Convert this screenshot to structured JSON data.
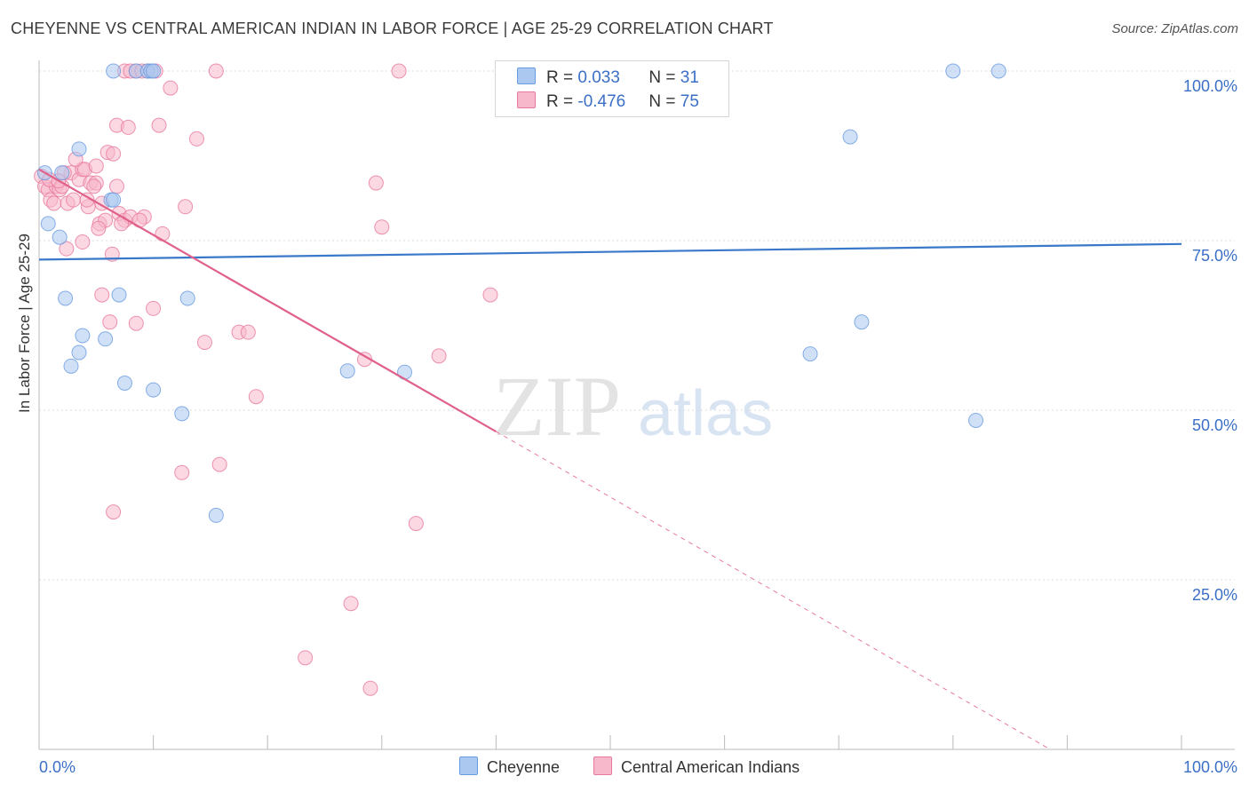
{
  "header": {
    "title": "CHEYENNE VS CENTRAL AMERICAN INDIAN IN LABOR FORCE | AGE 25-29 CORRELATION CHART",
    "source": "Source: ZipAtlas.com"
  },
  "watermark": {
    "zip": "ZIP",
    "atlas": "atlas"
  },
  "legend": {
    "rows": [
      {
        "r_label": "R = ",
        "r_value": "0.033",
        "n_label": "N = ",
        "n_value": "31",
        "color": "#aac8f0"
      },
      {
        "r_label": "R = ",
        "r_value": "-0.476",
        "n_label": "N = ",
        "n_value": "75",
        "color": "#f7b8cb"
      }
    ]
  },
  "bottom_legend": [
    {
      "label": "Cheyenne",
      "color": "#aac8f0"
    },
    {
      "label": "Central American Indians",
      "color": "#f7b8cb"
    }
  ],
  "chart_data": {
    "type": "scatter",
    "title": "CHEYENNE VS CENTRAL AMERICAN INDIAN IN LABOR FORCE | AGE 25-29 CORRELATION CHART",
    "xlabel": "",
    "ylabel": "In Labor Force | Age 25-29",
    "xlim": [
      0,
      100
    ],
    "ylim": [
      0,
      100
    ],
    "x_tick_labels": [
      "0.0%",
      "100.0%"
    ],
    "y_tick_labels": [
      "25.0%",
      "50.0%",
      "75.0%",
      "100.0%"
    ],
    "y_ticks": [
      25,
      50,
      75,
      100
    ],
    "series": [
      {
        "name": "Cheyenne",
        "color": "#6a9be0",
        "fill": "#aac8f0",
        "trend": {
          "x0": 0,
          "y0": 72.2,
          "x1": 100,
          "y1": 74.5,
          "dashed_from": null
        },
        "points": [
          [
            0.5,
            85
          ],
          [
            0.8,
            77.5
          ],
          [
            2,
            85
          ],
          [
            3.5,
            88.5
          ],
          [
            6.3,
            81
          ],
          [
            1.8,
            75.5
          ],
          [
            2.3,
            66.5
          ],
          [
            7,
            67
          ],
          [
            13,
            66.5
          ],
          [
            3.8,
            61
          ],
          [
            5.8,
            60.5
          ],
          [
            3.5,
            58.5
          ],
          [
            2.8,
            56.5
          ],
          [
            7.5,
            54
          ],
          [
            10,
            53
          ],
          [
            12.5,
            49.5
          ],
          [
            15.5,
            34.5
          ],
          [
            6.5,
            100
          ],
          [
            8.5,
            100
          ],
          [
            9.5,
            100
          ],
          [
            9.8,
            100
          ],
          [
            10,
            100
          ],
          [
            27,
            55.8
          ],
          [
            32,
            55.6
          ],
          [
            67.5,
            58.3
          ],
          [
            72,
            63
          ],
          [
            71,
            90.3
          ],
          [
            80,
            100
          ],
          [
            84,
            100
          ],
          [
            82,
            48.5
          ],
          [
            6.5,
            81
          ]
        ]
      },
      {
        "name": "Central American Indians",
        "color": "#e8799d",
        "fill": "#f7b8cb",
        "trend": {
          "x0": 0,
          "y0": 85.5,
          "x1": 88.5,
          "y1": 0,
          "dashed_from": 40
        },
        "points": [
          [
            0.2,
            84.5
          ],
          [
            0.5,
            83
          ],
          [
            0.8,
            82.5
          ],
          [
            1,
            81
          ],
          [
            1.3,
            80.5
          ],
          [
            1.5,
            83
          ],
          [
            1.8,
            82.5
          ],
          [
            2,
            83
          ],
          [
            2.5,
            80.5
          ],
          [
            2.8,
            85
          ],
          [
            3,
            81
          ],
          [
            3.5,
            84
          ],
          [
            3.8,
            85.5
          ],
          [
            4,
            85.5
          ],
          [
            4.3,
            80
          ],
          [
            4.5,
            83.5
          ],
          [
            5,
            83.5
          ],
          [
            5.3,
            77.5
          ],
          [
            5.5,
            80.5
          ],
          [
            5.8,
            78
          ],
          [
            6,
            88
          ],
          [
            6.5,
            87.8
          ],
          [
            7,
            79
          ],
          [
            7.5,
            78
          ],
          [
            8,
            78.5
          ],
          [
            6.8,
            92
          ],
          [
            7.8,
            91.7
          ],
          [
            10.5,
            92
          ],
          [
            11.5,
            97.5
          ],
          [
            13.8,
            90
          ],
          [
            12.8,
            80
          ],
          [
            7.2,
            77.5
          ],
          [
            9.2,
            78.5
          ],
          [
            6.4,
            73
          ],
          [
            2.4,
            73.8
          ],
          [
            3.8,
            74.8
          ],
          [
            10.8,
            76
          ],
          [
            5.5,
            67
          ],
          [
            6.2,
            63
          ],
          [
            8.5,
            62.8
          ],
          [
            10,
            65
          ],
          [
            14.5,
            60
          ],
          [
            17.5,
            61.5
          ],
          [
            18.3,
            61.5
          ],
          [
            19,
            52
          ],
          [
            12.5,
            40.8
          ],
          [
            15.8,
            42
          ],
          [
            6.5,
            35
          ],
          [
            28.5,
            57.5
          ],
          [
            30,
            77
          ],
          [
            29.5,
            83.5
          ],
          [
            35,
            58
          ],
          [
            39.5,
            67
          ],
          [
            33,
            33.3
          ],
          [
            27.3,
            21.5
          ],
          [
            23.3,
            13.5
          ],
          [
            29,
            9
          ],
          [
            7.5,
            100
          ],
          [
            8,
            100
          ],
          [
            8.5,
            100
          ],
          [
            9,
            100
          ],
          [
            9.5,
            100
          ],
          [
            10.2,
            100
          ],
          [
            15.5,
            100
          ],
          [
            31.5,
            100
          ],
          [
            4.2,
            81
          ],
          [
            5,
            86
          ],
          [
            4.8,
            83
          ],
          [
            2.2,
            85
          ],
          [
            0.9,
            84
          ],
          [
            1.7,
            83.8
          ],
          [
            6.8,
            83
          ],
          [
            8.8,
            78
          ],
          [
            3.2,
            87
          ],
          [
            5.2,
            76.8
          ]
        ]
      }
    ]
  }
}
